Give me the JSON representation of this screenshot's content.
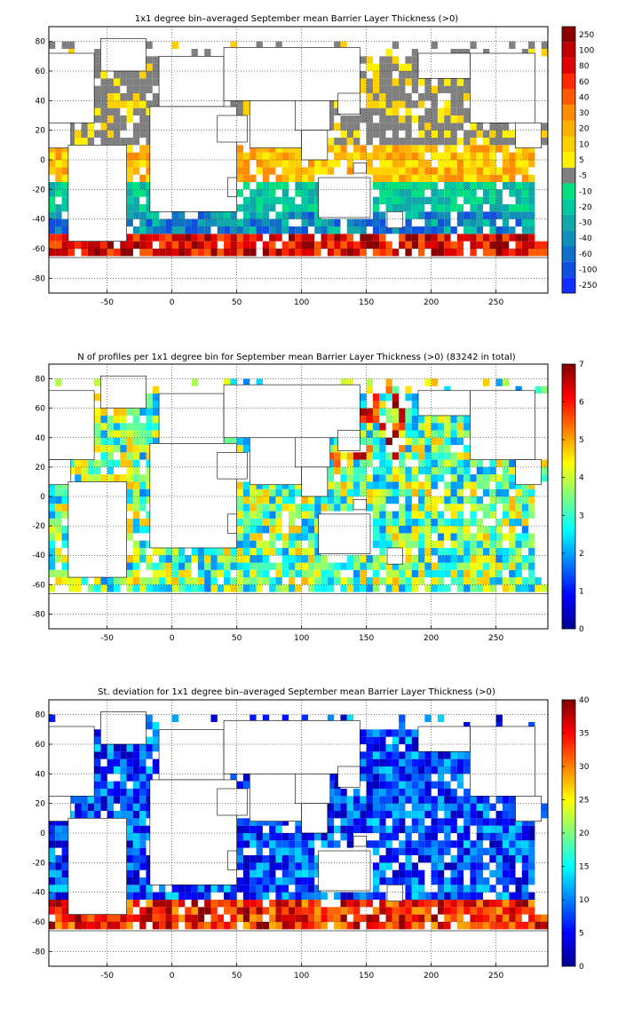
{
  "figure": {
    "panels": [
      {
        "id": "bin-mean",
        "title": "1x1 degree bin–averaged September mean Barrier Layer Thickness (>0)",
        "colorbar": {
          "type": "discrete",
          "labels": [
            "250",
            "100",
            "80",
            "60",
            "40",
            "30",
            "20",
            "10",
            "5",
            "-5",
            "-10",
            "-20",
            "-30",
            "-40",
            "-60",
            "-100",
            "-250"
          ],
          "colors": [
            "#8b0000",
            "#c00000",
            "#e00000",
            "#ff2a00",
            "#ff5a00",
            "#ff8c00",
            "#ffb000",
            "#ffd000",
            "#fff000",
            "#808080",
            "#00e080",
            "#00c8a0",
            "#10a8a8",
            "#1090b8",
            "#1070c8",
            "#1050e0",
            "#1030ff"
          ]
        }
      },
      {
        "id": "profile-count",
        "title": "N of profiles per 1x1 degree bin for September mean Barrier Layer Thickness (>0) (83242 in total)",
        "colorbar": {
          "type": "continuous",
          "ticks": [
            "0",
            "1",
            "2",
            "3",
            "4",
            "5",
            "6",
            "7"
          ],
          "range": [
            0,
            7
          ],
          "colormap": "jet"
        }
      },
      {
        "id": "std-dev",
        "title": "St. deviation for 1x1 degree bin–averaged September mean Barrier Layer Thickness (>0)",
        "colorbar": {
          "type": "continuous",
          "ticks": [
            "0",
            "5",
            "10",
            "15",
            "20",
            "25",
            "30",
            "35",
            "40"
          ],
          "range": [
            0,
            40
          ],
          "colormap": "jet"
        }
      }
    ]
  },
  "chart_data": [
    {
      "type": "heatmap",
      "title": "1x1 degree bin–averaged September mean Barrier Layer Thickness (>0)",
      "xlim": [
        -95,
        290
      ],
      "ylim": [
        -90,
        90
      ],
      "xticks": [
        -50,
        0,
        50,
        100,
        150,
        200,
        250
      ],
      "yticks": [
        -80,
        -60,
        -40,
        -20,
        0,
        20,
        40,
        60,
        80
      ],
      "grid": true,
      "colorbar_labels": [
        "250",
        "100",
        "80",
        "60",
        "40",
        "30",
        "20",
        "10",
        "5",
        "-5",
        "-10",
        "-20",
        "-30",
        "-40",
        "-60",
        "-100",
        "-250"
      ]
    },
    {
      "type": "heatmap",
      "title": "N of profiles per 1x1 degree bin for September mean Barrier Layer Thickness (>0) (83242 in total)",
      "xlim": [
        -95,
        290
      ],
      "ylim": [
        -90,
        90
      ],
      "xticks": [
        -50,
        0,
        50,
        100,
        150,
        200,
        250
      ],
      "yticks": [
        -80,
        -60,
        -40,
        -20,
        0,
        20,
        40,
        60,
        80
      ],
      "grid": true,
      "colorbar_range": [
        0,
        7
      ]
    },
    {
      "type": "heatmap",
      "title": "St. deviation for 1x1 degree bin–averaged September mean Barrier Layer Thickness (>0)",
      "xlim": [
        -95,
        290
      ],
      "ylim": [
        -90,
        90
      ],
      "xticks": [
        -50,
        0,
        50,
        100,
        150,
        200,
        250
      ],
      "yticks": [
        -80,
        -60,
        -40,
        -20,
        0,
        20,
        40,
        60,
        80
      ],
      "grid": true,
      "colorbar_range": [
        0,
        40
      ]
    }
  ]
}
